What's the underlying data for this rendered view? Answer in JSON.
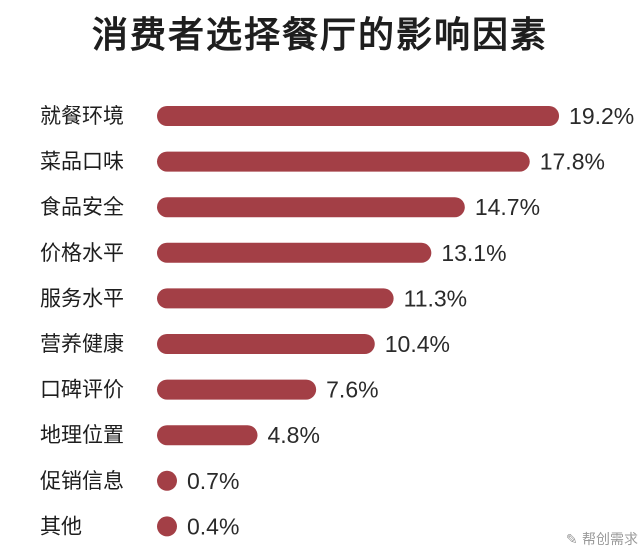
{
  "chart_data": {
    "type": "bar",
    "orientation": "horizontal",
    "title": "消费者选择餐厅的影响因素",
    "categories": [
      "就餐环境",
      "菜品口味",
      "食品安全",
      "价格水平",
      "服务水平",
      "营养健康",
      "口碑评价",
      "地理位置",
      "促销信息",
      "其他"
    ],
    "values": [
      19.2,
      17.8,
      14.7,
      13.1,
      11.3,
      10.4,
      7.6,
      4.8,
      0.7,
      0.4
    ],
    "value_labels": [
      "19.2%",
      "17.8%",
      "14.7%",
      "13.1%",
      "11.3%",
      "10.4%",
      "7.6%",
      "4.8%",
      "0.7%",
      "0.4%"
    ],
    "unit": "%",
    "bar_color": "#a33f46"
  },
  "watermark": "✎ 帮创需求"
}
